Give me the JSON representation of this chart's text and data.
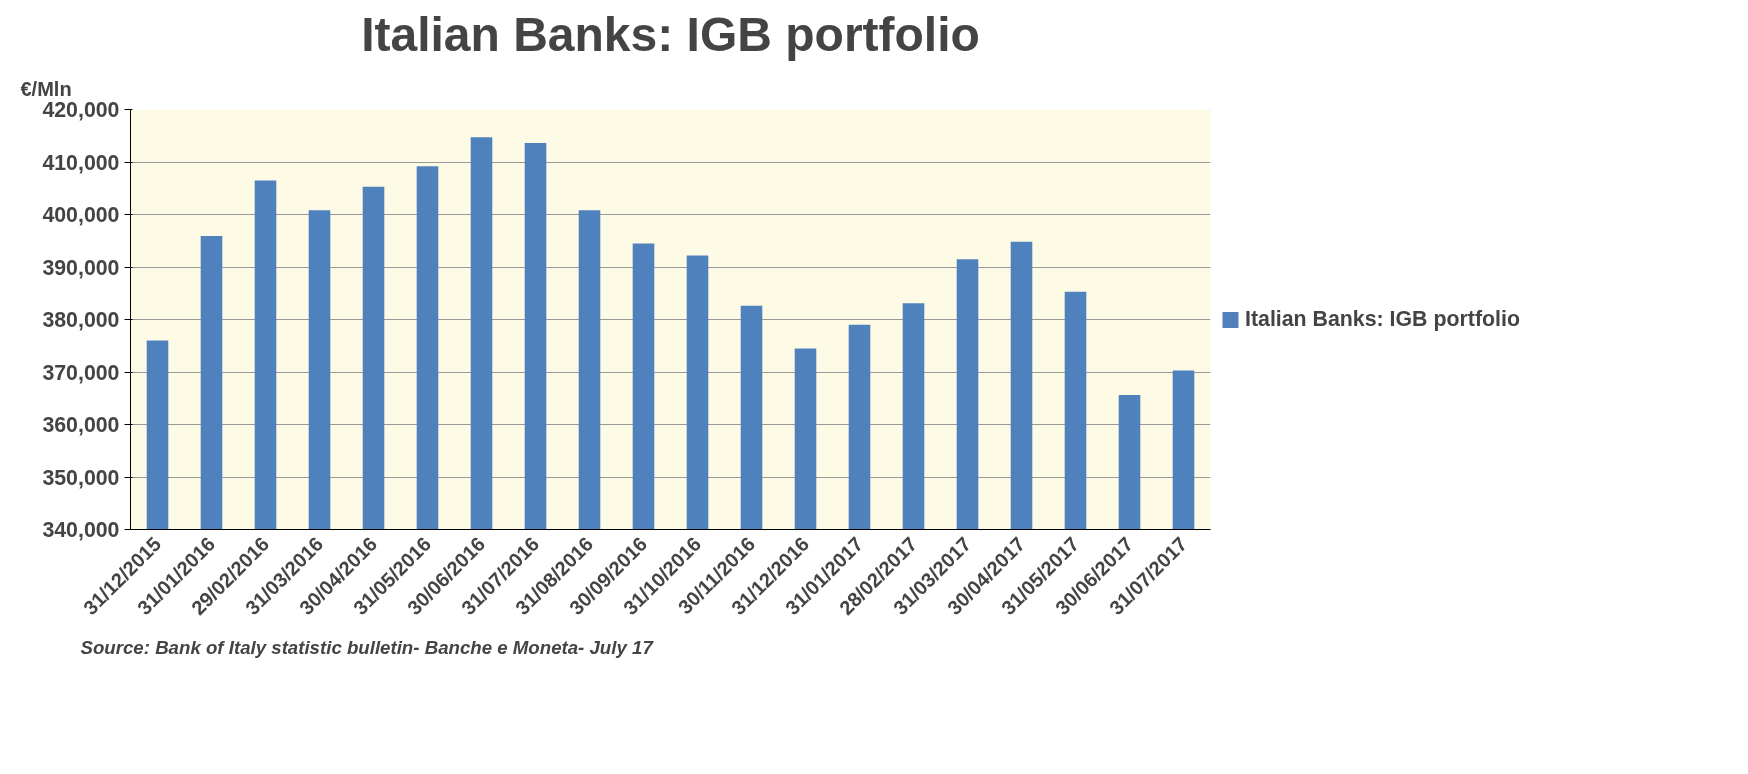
{
  "chart_data": {
    "type": "bar",
    "title": "Italian Banks: IGB portfolio",
    "ylabel": "€/Mln",
    "categories": [
      "31/12/2015",
      "31/01/2016",
      "29/02/2016",
      "31/03/2016",
      "30/04/2016",
      "31/05/2016",
      "30/06/2016",
      "31/07/2016",
      "31/08/2016",
      "30/09/2016",
      "31/10/2016",
      "30/11/2016",
      "31/12/2016",
      "31/01/2017",
      "28/02/2017",
      "31/03/2017",
      "30/04/2017",
      "31/05/2017",
      "30/06/2017",
      "31/07/2017"
    ],
    "series": [
      {
        "name": "Italian Banks: IGB portfolio",
        "color": "#4f81bd",
        "values": [
          376000,
          395900,
          406500,
          400800,
          405300,
          409200,
          414700,
          413600,
          400800,
          394500,
          392200,
          382600,
          374500,
          379000,
          383100,
          391500,
          394800,
          385300,
          365600,
          370300
        ]
      }
    ],
    "ylim": [
      340000,
      420000
    ],
    "yticks": [
      {
        "value": 340000,
        "label": "340,000"
      },
      {
        "value": 350000,
        "label": "350,000"
      },
      {
        "value": 360000,
        "label": "360,000"
      },
      {
        "value": 370000,
        "label": "370,000"
      },
      {
        "value": 380000,
        "label": "380,000"
      },
      {
        "value": 390000,
        "label": "390,000"
      },
      {
        "value": 400000,
        "label": "400,000"
      },
      {
        "value": 410000,
        "label": "410,000"
      },
      {
        "value": 420000,
        "label": "420,000"
      }
    ],
    "grid": "y",
    "legend": "right",
    "annotations": [
      "Source: Bank of Italy statistic bulletin- Banche e Moneta- July 17"
    ]
  }
}
